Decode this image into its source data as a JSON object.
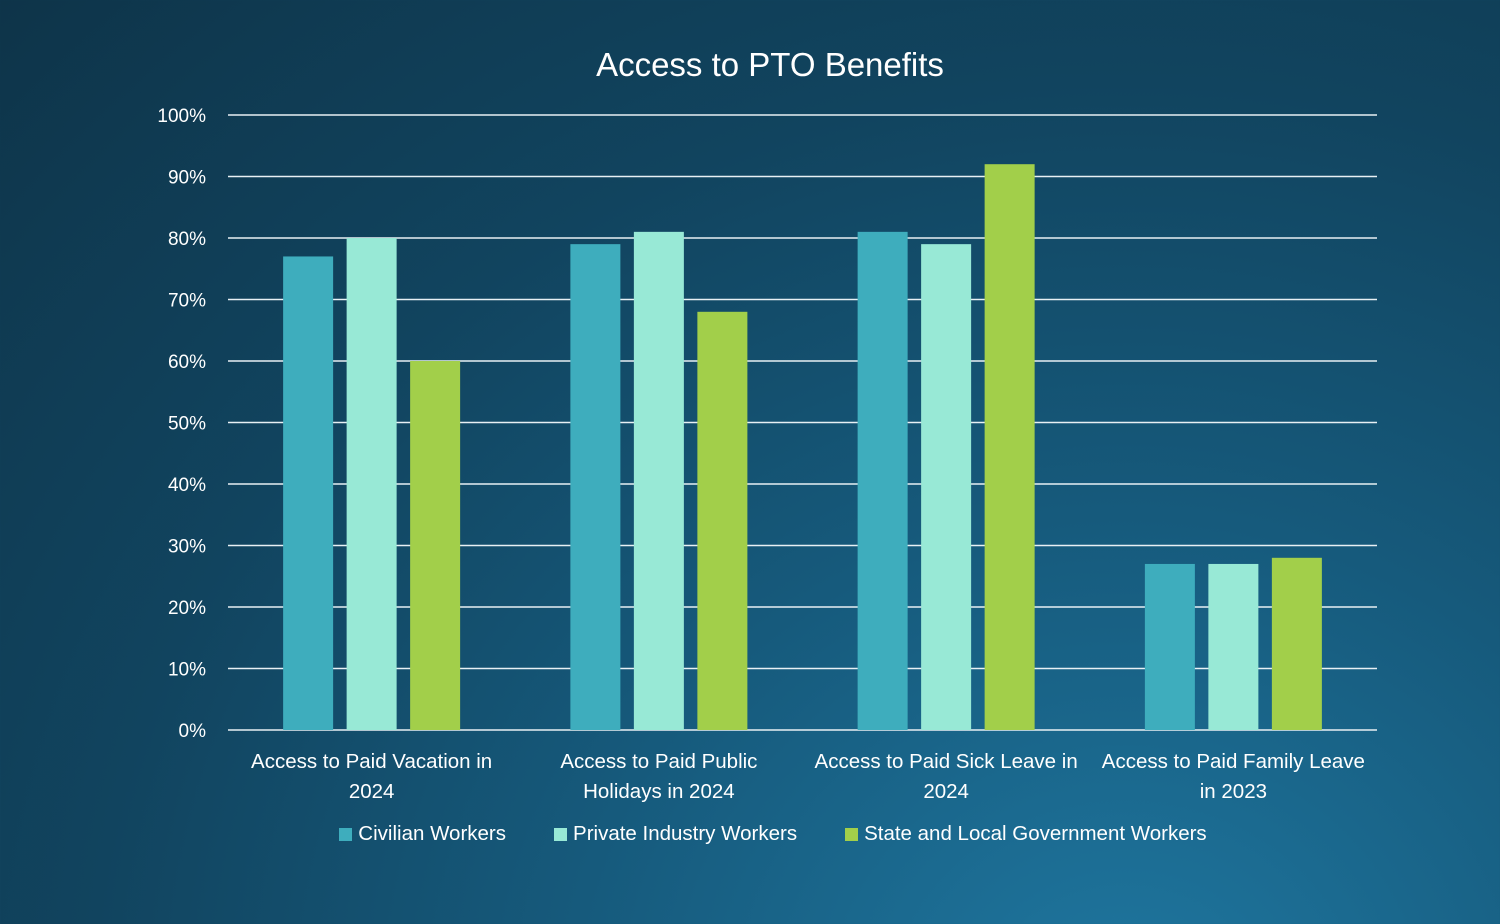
{
  "chart_data": {
    "type": "bar",
    "title": "Access to PTO Benefits",
    "categories": [
      "Access to Paid Vacation in 2024",
      "Access to Paid Public Holidays in 2024",
      "Access to Paid Sick Leave in 2024",
      "Access to Paid Family Leave in 2023"
    ],
    "series": [
      {
        "name": "Civilian Workers",
        "color": "#3eadbd",
        "values": [
          77,
          79,
          81,
          27
        ]
      },
      {
        "name": "Private Industry Workers",
        "color": "#98e9d6",
        "values": [
          80,
          81,
          79,
          27
        ]
      },
      {
        "name": "State and Local Government Workers",
        "color": "#a2cf4a",
        "values": [
          60,
          68,
          92,
          28
        ]
      }
    ],
    "ylim": [
      0,
      100
    ],
    "yticks": [
      "0%",
      "10%",
      "20%",
      "30%",
      "40%",
      "50%",
      "60%",
      "70%",
      "80%",
      "90%",
      "100%"
    ],
    "grid": true,
    "legend_position": "bottom"
  }
}
